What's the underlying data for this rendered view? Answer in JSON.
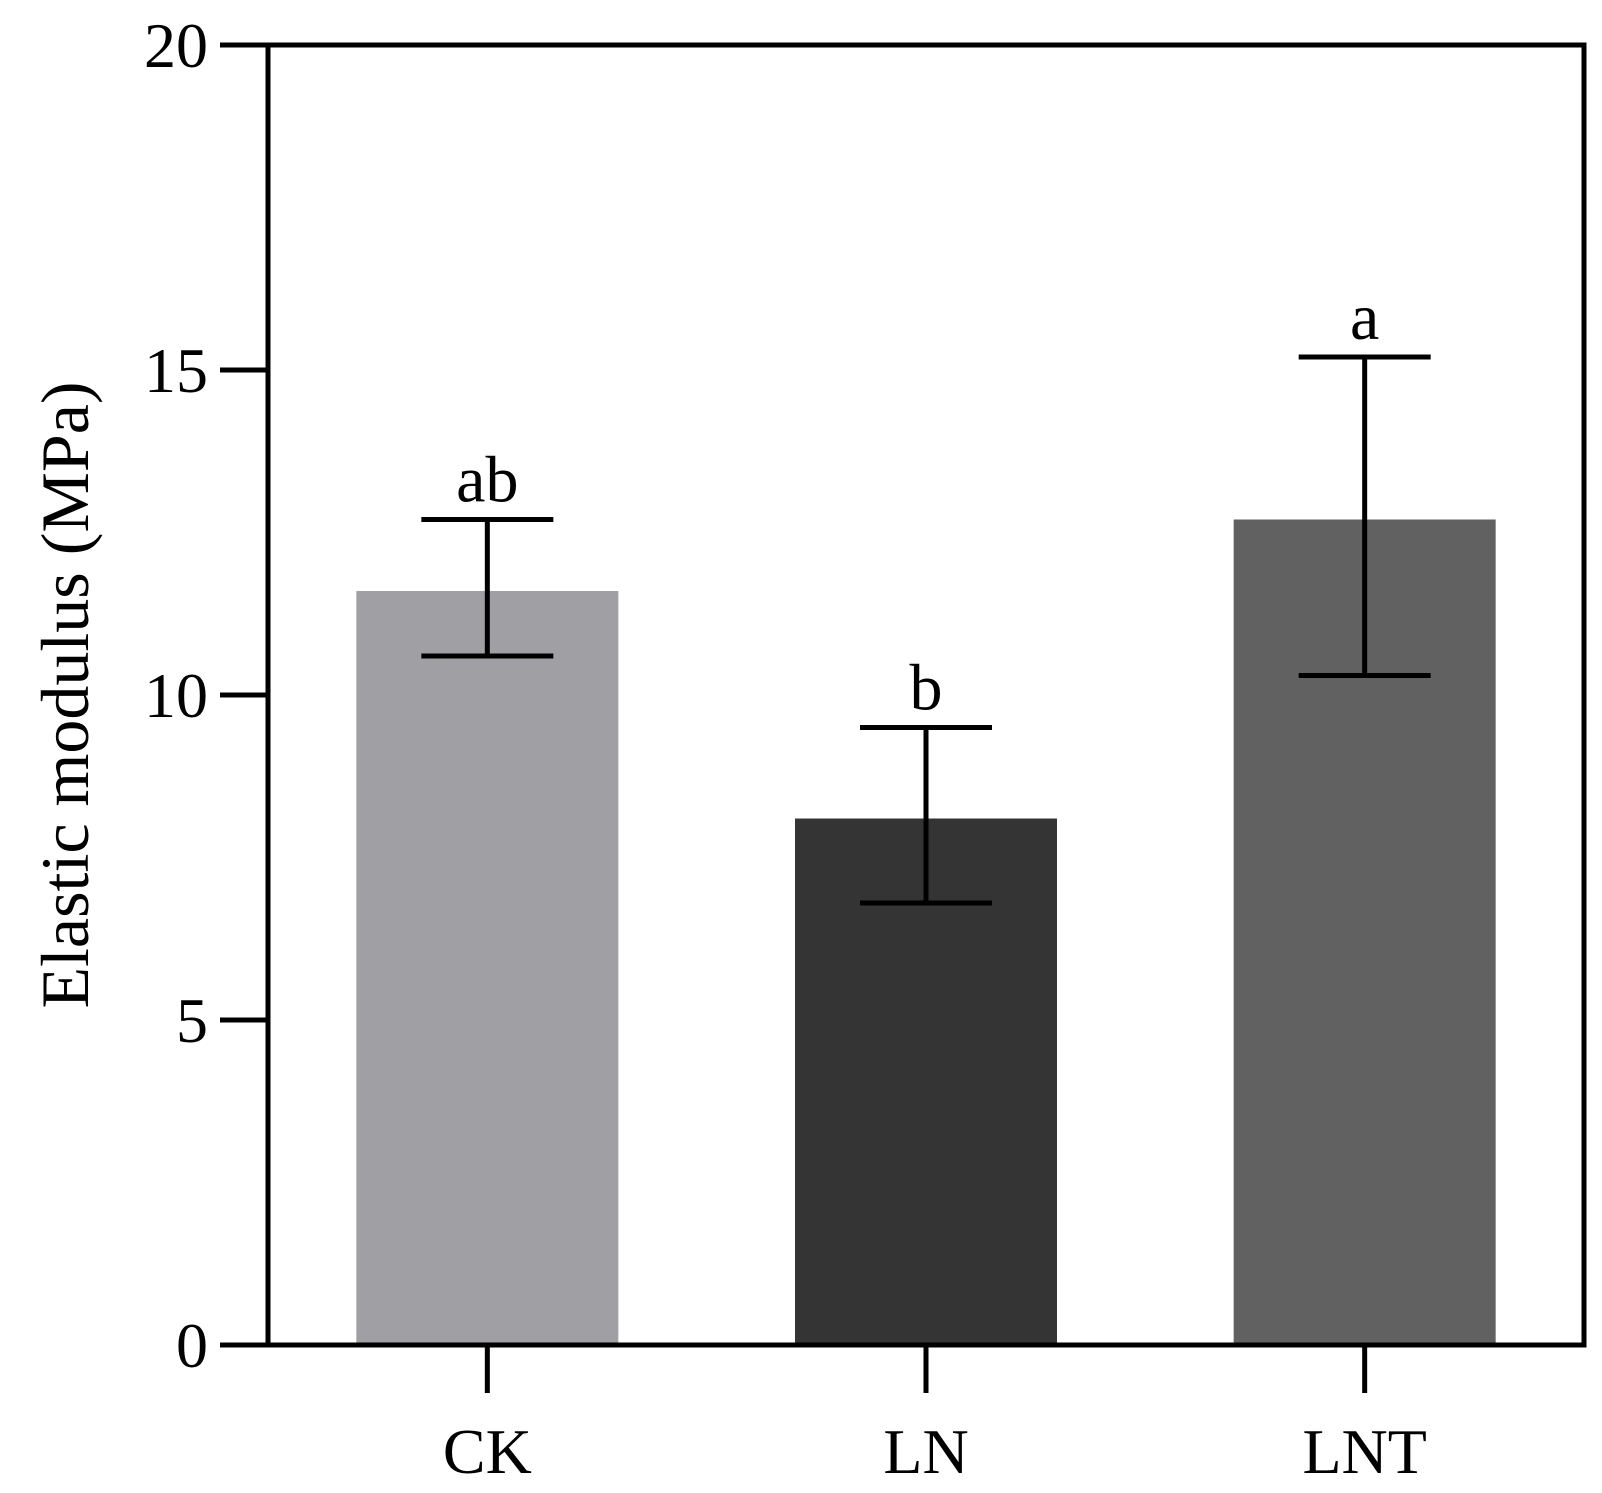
{
  "chart_data": {
    "type": "bar",
    "title": "",
    "xlabel": "",
    "ylabel": "Elastic modulus (MPa)",
    "ylim": [
      0,
      20
    ],
    "yticks": [
      0,
      5,
      10,
      15,
      20
    ],
    "categories": [
      "CK",
      "LN",
      "LNT"
    ],
    "values": [
      11.6,
      8.1,
      12.7
    ],
    "error_upper": [
      12.7,
      9.5,
      15.2
    ],
    "error_lower": [
      10.6,
      6.8,
      10.3
    ],
    "significance": [
      "ab",
      "b",
      "a"
    ],
    "colors": [
      "#a09fa4",
      "#343434",
      "#616161"
    ],
    "grid": false,
    "legend": "none"
  }
}
